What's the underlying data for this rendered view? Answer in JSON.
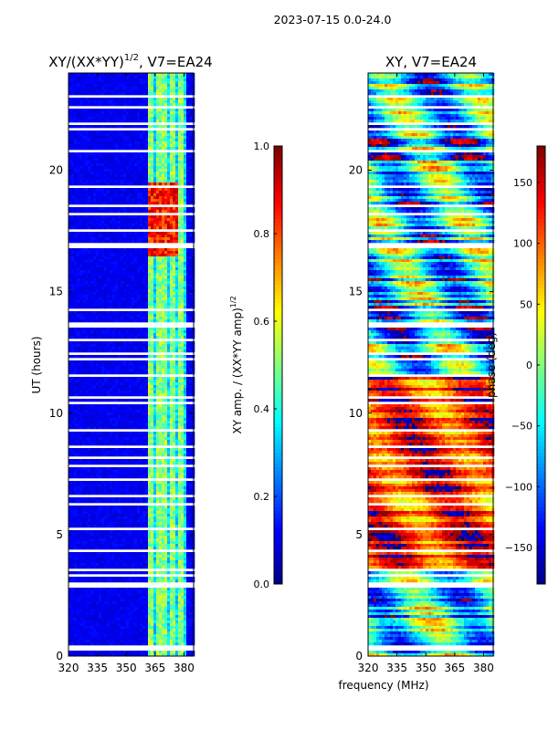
{
  "figure": {
    "suptitle": "2023-07-15 0.0-24.0",
    "shared_xlabel": "frequency (MHz)"
  },
  "chart_data": [
    {
      "type": "heatmap",
      "title": "XY/(XX*YY)",
      "title_exponent": "1/2",
      "title_suffix": ", V7=EA24",
      "xlabel": "",
      "ylabel": "UT (hours)",
      "xlim": [
        320,
        385
      ],
      "ylim": [
        0,
        24
      ],
      "xticks": [
        320,
        335,
        350,
        365,
        380
      ],
      "yticks": [
        0,
        5,
        10,
        15,
        20
      ],
      "colorbar": {
        "label": "XY amp. / (XX*YY amp)",
        "label_exponent": "1/2",
        "range": [
          0.0,
          1.0
        ],
        "ticks": [
          "0.0",
          "0.2",
          "0.4",
          "0.6",
          "0.8",
          "1.0"
        ],
        "tick_values": [
          0.0,
          0.2,
          0.4,
          0.6,
          0.8,
          1.0
        ],
        "colormap": "jet"
      },
      "background_value": 0.08,
      "active_band_mhz": [
        361,
        381
      ],
      "band_columns_mhz": [
        362.5,
        366.5,
        370.5,
        374.5,
        378.5
      ],
      "high_feature": {
        "ut_range": [
          16.5,
          19.5
        ],
        "value": 0.85
      },
      "gaps_ut": [
        0.3,
        0.45,
        2.9,
        3.05,
        3.4,
        3.6,
        4.4,
        5.3,
        6.3,
        6.7,
        7.3,
        7.9,
        8.2,
        8.7,
        9.3,
        10.5,
        10.7,
        11.6,
        12.3,
        12.5,
        13.1,
        13.6,
        13.8,
        14.3,
        16.9,
        17.0,
        17.6,
        18.3,
        18.6,
        19.4,
        20.8,
        21.8,
        22.0,
        22.7,
        23.1
      ]
    },
    {
      "type": "heatmap",
      "title": "XY, V7=EA24",
      "xlabel": "",
      "ylabel": "",
      "xlim": [
        320,
        385
      ],
      "ylim": [
        0,
        24
      ],
      "xticks": [
        320,
        335,
        350,
        365,
        380
      ],
      "yticks": [
        0,
        5,
        10,
        15,
        20
      ],
      "colorbar": {
        "label": "phase (deg)",
        "range": [
          -180,
          180
        ],
        "ticks": [
          "−150",
          "−100",
          "−50",
          "0",
          "50",
          "100",
          "150"
        ],
        "tick_values": [
          -150,
          -100,
          -50,
          0,
          50,
          100,
          150
        ],
        "colormap": "jet"
      },
      "phase_regions": [
        {
          "ut_range": [
            3.5,
            11.5
          ],
          "mean_deg": 120,
          "spread_deg": 90
        },
        {
          "ut_range": [
            11.5,
            24.0
          ],
          "mean_deg": -60,
          "spread_deg": 160
        },
        {
          "ut_range": [
            0.0,
            3.5
          ],
          "mean_deg": -40,
          "spread_deg": 140
        }
      ],
      "gaps_ut": [
        0.3,
        0.45,
        2.9,
        3.05,
        3.4,
        3.6,
        4.4,
        5.3,
        6.3,
        6.7,
        7.3,
        7.9,
        8.2,
        8.7,
        9.3,
        10.5,
        10.7,
        11.6,
        12.3,
        12.5,
        13.1,
        13.6,
        13.8,
        14.3,
        16.9,
        17.0,
        17.6,
        18.3,
        18.6,
        19.4,
        20.8,
        21.8,
        22.0,
        22.7,
        23.1
      ]
    }
  ]
}
